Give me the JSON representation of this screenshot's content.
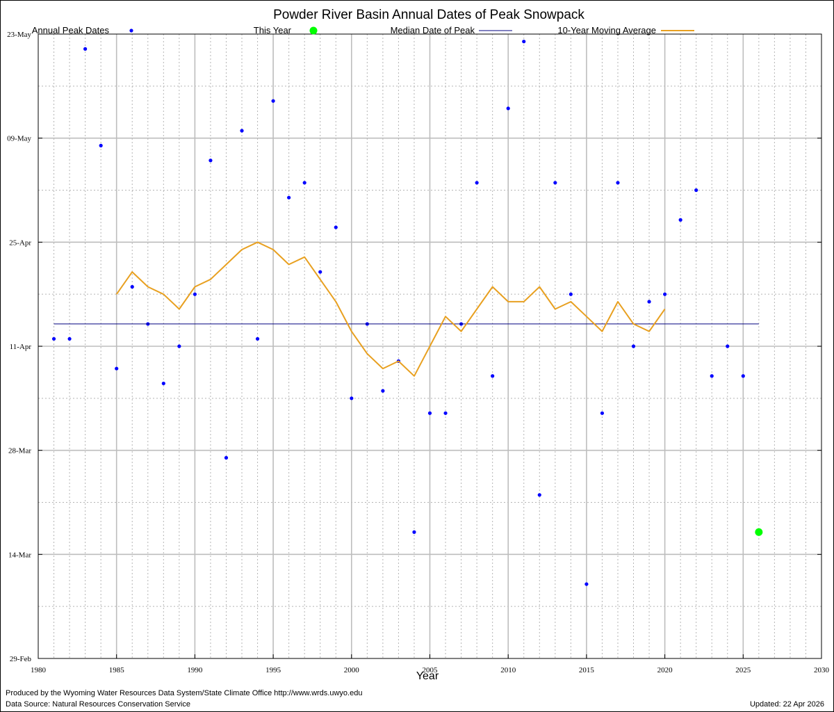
{
  "chart_data": {
    "type": "scatter",
    "title": "Powder River Basin Annual Dates of Peak Snowpack",
    "xlabel": "Year",
    "ylabel": "",
    "xlim": [
      1980,
      2030
    ],
    "ylim": [
      "29-Feb",
      "23-May"
    ],
    "x_ticks": [
      "1980",
      "1985",
      "1990",
      "1995",
      "2000",
      "2005",
      "2010",
      "2015",
      "2020",
      "2025",
      "2030"
    ],
    "y_ticks": [
      "29-Feb",
      "14-Mar",
      "28-Mar",
      "11-Apr",
      "25-Apr",
      "09-May",
      "23-May"
    ],
    "grid": true,
    "legend": [
      {
        "label": "Annual Peak Dates",
        "color": "#0000ff",
        "marker": "dot"
      },
      {
        "label": "This Year",
        "color": "#00ff00",
        "marker": "large-dot"
      },
      {
        "label": "Median Date of Peak",
        "color": "#000080",
        "marker": "line"
      },
      {
        "label": "10-Year Moving Average",
        "color": "#e8a020",
        "marker": "line"
      }
    ],
    "series": [
      {
        "name": "Annual Peak Dates",
        "color": "#0000ff",
        "points": [
          {
            "year": 1981,
            "date": "12-Apr"
          },
          {
            "year": 1982,
            "date": "12-Apr"
          },
          {
            "year": 1983,
            "date": "21-May"
          },
          {
            "year": 1984,
            "date": "08-May"
          },
          {
            "year": 1985,
            "date": "08-Apr"
          },
          {
            "year": 1986,
            "date": "19-Apr"
          },
          {
            "year": 1987,
            "date": "14-Apr"
          },
          {
            "year": 1988,
            "date": "06-Apr"
          },
          {
            "year": 1989,
            "date": "11-Apr"
          },
          {
            "year": 1990,
            "date": "18-Apr"
          },
          {
            "year": 1991,
            "date": "06-May"
          },
          {
            "year": 1992,
            "date": "27-Mar"
          },
          {
            "year": 1993,
            "date": "10-May"
          },
          {
            "year": 1994,
            "date": "12-Apr"
          },
          {
            "year": 1995,
            "date": "14-May"
          },
          {
            "year": 1996,
            "date": "01-May"
          },
          {
            "year": 1997,
            "date": "03-May"
          },
          {
            "year": 1998,
            "date": "21-Apr"
          },
          {
            "year": 1999,
            "date": "27-Apr"
          },
          {
            "year": 2000,
            "date": "04-Apr"
          },
          {
            "year": 2001,
            "date": "14-Apr"
          },
          {
            "year": 2002,
            "date": "05-Apr"
          },
          {
            "year": 2003,
            "date": "09-Apr"
          },
          {
            "year": 2004,
            "date": "17-Mar"
          },
          {
            "year": 2005,
            "date": "02-Apr"
          },
          {
            "year": 2006,
            "date": "02-Apr"
          },
          {
            "year": 2007,
            "date": "14-Apr"
          },
          {
            "year": 2008,
            "date": "03-May"
          },
          {
            "year": 2009,
            "date": "07-Apr"
          },
          {
            "year": 2010,
            "date": "13-May"
          },
          {
            "year": 2011,
            "date": "22-May"
          },
          {
            "year": 2012,
            "date": "22-Mar"
          },
          {
            "year": 2013,
            "date": "03-May"
          },
          {
            "year": 2014,
            "date": "18-Apr"
          },
          {
            "year": 2015,
            "date": "10-Mar"
          },
          {
            "year": 2016,
            "date": "02-Apr"
          },
          {
            "year": 2017,
            "date": "03-May"
          },
          {
            "year": 2018,
            "date": "11-Apr"
          },
          {
            "year": 2019,
            "date": "17-Apr"
          },
          {
            "year": 2020,
            "date": "18-Apr"
          },
          {
            "year": 2021,
            "date": "28-Apr"
          },
          {
            "year": 2022,
            "date": "02-May"
          },
          {
            "year": 2023,
            "date": "07-Apr"
          },
          {
            "year": 2024,
            "date": "11-Apr"
          },
          {
            "year": 2025,
            "date": "07-Apr"
          }
        ]
      },
      {
        "name": "This Year",
        "color": "#00ff00",
        "points": [
          {
            "year": 2026,
            "date": "17-Mar"
          }
        ]
      },
      {
        "name": "Median Date of Peak",
        "color": "#000080",
        "points": [
          {
            "year": 1981,
            "date": "14-Apr"
          },
          {
            "year": 2026,
            "date": "14-Apr"
          }
        ]
      },
      {
        "name": "10-Year Moving Average",
        "color": "#e8a020",
        "points": [
          {
            "year": 1985,
            "date": "18-Apr"
          },
          {
            "year": 1986,
            "date": "21-Apr"
          },
          {
            "year": 1987,
            "date": "19-Apr"
          },
          {
            "year": 1988,
            "date": "18-Apr"
          },
          {
            "year": 1989,
            "date": "16-Apr"
          },
          {
            "year": 1990,
            "date": "19-Apr"
          },
          {
            "year": 1991,
            "date": "20-Apr"
          },
          {
            "year": 1992,
            "date": "22-Apr"
          },
          {
            "year": 1993,
            "date": "24-Apr"
          },
          {
            "year": 1994,
            "date": "25-Apr"
          },
          {
            "year": 1995,
            "date": "24-Apr"
          },
          {
            "year": 1996,
            "date": "22-Apr"
          },
          {
            "year": 1997,
            "date": "23-Apr"
          },
          {
            "year": 1998,
            "date": "20-Apr"
          },
          {
            "year": 1999,
            "date": "17-Apr"
          },
          {
            "year": 2000,
            "date": "13-Apr"
          },
          {
            "year": 2001,
            "date": "10-Apr"
          },
          {
            "year": 2002,
            "date": "08-Apr"
          },
          {
            "year": 2003,
            "date": "09-Apr"
          },
          {
            "year": 2004,
            "date": "07-Apr"
          },
          {
            "year": 2005,
            "date": "11-Apr"
          },
          {
            "year": 2006,
            "date": "15-Apr"
          },
          {
            "year": 2007,
            "date": "13-Apr"
          },
          {
            "year": 2008,
            "date": "16-Apr"
          },
          {
            "year": 2009,
            "date": "19-Apr"
          },
          {
            "year": 2010,
            "date": "17-Apr"
          },
          {
            "year": 2011,
            "date": "17-Apr"
          },
          {
            "year": 2012,
            "date": "19-Apr"
          },
          {
            "year": 2013,
            "date": "16-Apr"
          },
          {
            "year": 2014,
            "date": "17-Apr"
          },
          {
            "year": 2015,
            "date": "15-Apr"
          },
          {
            "year": 2016,
            "date": "13-Apr"
          },
          {
            "year": 2017,
            "date": "17-Apr"
          },
          {
            "year": 2018,
            "date": "14-Apr"
          },
          {
            "year": 2019,
            "date": "13-Apr"
          },
          {
            "year": 2020,
            "date": "16-Apr"
          }
        ]
      }
    ]
  },
  "footer": {
    "produced_by": "Produced by the Wyoming Water Resources Data System/State Climate Office http://www.wrds.uwyo.edu",
    "data_source": "Data Source: Natural Resources Conservation Service",
    "updated": "Updated: 22 Apr 2026"
  }
}
